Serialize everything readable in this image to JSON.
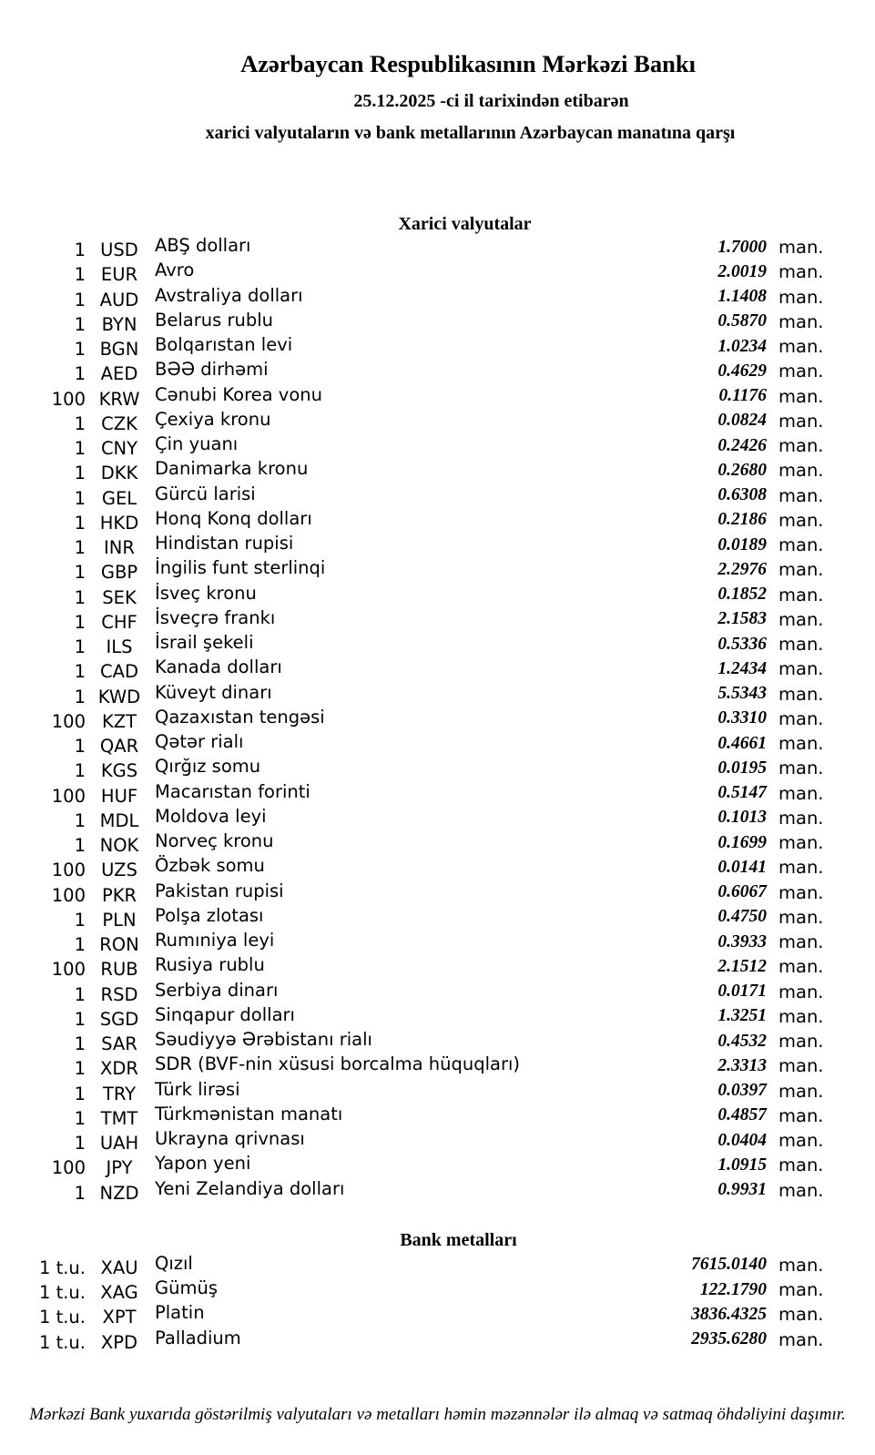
{
  "header": {
    "bank_title": "Azərbaycan Respublikasının Mərkəzi Bankı",
    "date_line": "25.12.2025 -ci il tarixindən etibarən",
    "subtitle": "xarici valyutaların və bank metallarının Azərbaycan manatına qarşı"
  },
  "sections": {
    "currencies_title": "Xarici valyutalar",
    "metals_title": "Bank metalları"
  },
  "unit_label": "man.",
  "currencies": [
    {
      "qty": "1",
      "code": "USD",
      "name": "ABŞ dolları",
      "rate": "1.7000"
    },
    {
      "qty": "1",
      "code": "EUR",
      "name": "Avro",
      "rate": "2.0019"
    },
    {
      "qty": "1",
      "code": "AUD",
      "name": "Avstraliya dolları",
      "rate": "1.1408"
    },
    {
      "qty": "1",
      "code": "BYN",
      "name": "Belarus rublu",
      "rate": "0.5870"
    },
    {
      "qty": "1",
      "code": "BGN",
      "name": "Bolqarıstan levi",
      "rate": "1.0234"
    },
    {
      "qty": "1",
      "code": "AED",
      "name": "BƏƏ dirhəmi",
      "rate": "0.4629"
    },
    {
      "qty": "100",
      "code": "KRW",
      "name": "Cənubi Korea vonu",
      "rate": "0.1176"
    },
    {
      "qty": "1",
      "code": "CZK",
      "name": "Çexiya kronu",
      "rate": "0.0824"
    },
    {
      "qty": "1",
      "code": "CNY",
      "name": "Çin yuanı",
      "rate": "0.2426"
    },
    {
      "qty": "1",
      "code": "DKK",
      "name": "Danimarka kronu",
      "rate": "0.2680"
    },
    {
      "qty": "1",
      "code": "GEL",
      "name": "Gürcü larisi",
      "rate": "0.6308"
    },
    {
      "qty": "1",
      "code": "HKD",
      "name": "Honq Konq dolları",
      "rate": "0.2186"
    },
    {
      "qty": "1",
      "code": "INR",
      "name": "Hindistan rupisi",
      "rate": "0.0189"
    },
    {
      "qty": "1",
      "code": "GBP",
      "name": "İngilis funt sterlinqi",
      "rate": "2.2976"
    },
    {
      "qty": "1",
      "code": "SEK",
      "name": "İsveç kronu",
      "rate": "0.1852"
    },
    {
      "qty": "1",
      "code": "CHF",
      "name": "İsveçrə frankı",
      "rate": "2.1583"
    },
    {
      "qty": "1",
      "code": "ILS",
      "name": "İsrail şekeli",
      "rate": "0.5336"
    },
    {
      "qty": "1",
      "code": "CAD",
      "name": "Kanada dolları",
      "rate": "1.2434"
    },
    {
      "qty": "1",
      "code": "KWD",
      "name": "Küveyt dinarı",
      "rate": "5.5343"
    },
    {
      "qty": "100",
      "code": "KZT",
      "name": "Qazaxıstan tengəsi",
      "rate": "0.3310"
    },
    {
      "qty": "1",
      "code": "QAR",
      "name": "Qətər rialı",
      "rate": "0.4661"
    },
    {
      "qty": "1",
      "code": "KGS",
      "name": "Qırğız somu",
      "rate": "0.0195"
    },
    {
      "qty": "100",
      "code": "HUF",
      "name": "Macarıstan forinti",
      "rate": "0.5147"
    },
    {
      "qty": "1",
      "code": "MDL",
      "name": "Moldova leyi",
      "rate": "0.1013"
    },
    {
      "qty": "1",
      "code": "NOK",
      "name": "Norveç kronu",
      "rate": "0.1699"
    },
    {
      "qty": "100",
      "code": "UZS",
      "name": "Özbək somu",
      "rate": "0.0141"
    },
    {
      "qty": "100",
      "code": "PKR",
      "name": "Pakistan rupisi",
      "rate": "0.6067"
    },
    {
      "qty": "1",
      "code": "PLN",
      "name": "Polşa zlotası",
      "rate": "0.4750"
    },
    {
      "qty": "1",
      "code": "RON",
      "name": "Rumıniya leyi",
      "rate": "0.3933"
    },
    {
      "qty": "100",
      "code": "RUB",
      "name": "Rusiya rublu",
      "rate": "2.1512"
    },
    {
      "qty": "1",
      "code": "RSD",
      "name": "Serbiya dinarı",
      "rate": "0.0171"
    },
    {
      "qty": "1",
      "code": "SGD",
      "name": "Sinqapur dolları",
      "rate": "1.3251"
    },
    {
      "qty": "1",
      "code": "SAR",
      "name": "Səudiyyə Ərəbistanı rialı",
      "rate": "0.4532"
    },
    {
      "qty": "1",
      "code": "XDR",
      "name": "SDR (BVF-nin xüsusi borcalma hüquqları)",
      "rate": "2.3313"
    },
    {
      "qty": "1",
      "code": "TRY",
      "name": "Türk lirəsi",
      "rate": "0.0397"
    },
    {
      "qty": "1",
      "code": "TMT",
      "name": "Türkmənistan manatı",
      "rate": "0.4857"
    },
    {
      "qty": "1",
      "code": "UAH",
      "name": "Ukrayna qrivnası",
      "rate": "0.0404"
    },
    {
      "qty": "100",
      "code": "JPY",
      "name": "Yapon yeni",
      "rate": "1.0915"
    },
    {
      "qty": "1",
      "code": "NZD",
      "name": "Yeni Zelandiya dolları",
      "rate": "0.9931"
    }
  ],
  "metals": [
    {
      "qty": "1 t.u.",
      "code": "XAU",
      "name": "Qızıl",
      "rate": "7615.0140"
    },
    {
      "qty": "1 t.u.",
      "code": "XAG",
      "name": "Gümüş",
      "rate": "122.1790"
    },
    {
      "qty": "1 t.u.",
      "code": "XPT",
      "name": "Platin",
      "rate": "3836.4325"
    },
    {
      "qty": "1 t.u.",
      "code": "XPD",
      "name": "Palladium",
      "rate": "2935.6280"
    }
  ],
  "footer": "Mərkəzi Bank yuxarıda göstərilmiş valyutaları və metalları həmin məzənnələr ilə almaq və satmaq öhdəliyini daşımır."
}
